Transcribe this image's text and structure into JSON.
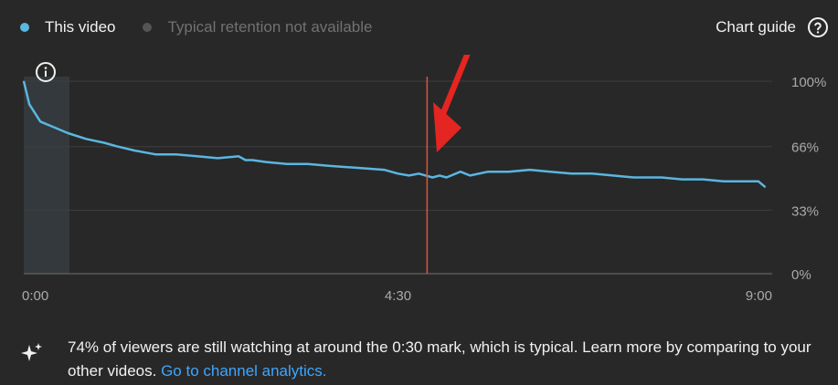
{
  "legend": {
    "this_video": "This video",
    "typical": "Typical retention not available"
  },
  "guide": {
    "label": "Chart guide"
  },
  "colors": {
    "series": "#5bb6e0",
    "typical_dot": "#555555",
    "marker": "#e0533e",
    "arrow": "#e52521",
    "link": "#3ea6ff"
  },
  "chart_data": {
    "type": "line",
    "xlabel": "",
    "ylabel": "",
    "x_ticks": [
      "0:00",
      "4:30",
      "9:00"
    ],
    "y_ticks": [
      "100%",
      "66%",
      "33%",
      "0%"
    ],
    "y_tick_values": [
      100,
      66,
      33,
      0
    ],
    "xlim_seconds": [
      0,
      540
    ],
    "ylim": [
      0,
      100
    ],
    "grid": true,
    "highlight_range_seconds": [
      0,
      33
    ],
    "marker_seconds": [
      291
    ],
    "series": [
      {
        "x_seconds": [
          0,
          4,
          12,
          22,
          32,
          45,
          58,
          68,
          80,
          95,
          110,
          125,
          140,
          155,
          160,
          165,
          175,
          190,
          205,
          220,
          240,
          260,
          270,
          278,
          285,
          290,
          295,
          300,
          305,
          315,
          322,
          335,
          350,
          365,
          380,
          395,
          410,
          425,
          440,
          450,
          460,
          475,
          490,
          505,
          515,
          530,
          535
        ],
        "values": [
          100,
          88,
          79,
          76,
          73,
          70,
          68,
          66,
          64,
          62,
          62,
          61,
          60,
          61,
          59,
          59,
          58,
          57,
          57,
          56,
          55,
          54,
          52,
          51,
          52,
          51,
          50,
          51,
          50,
          53,
          51,
          53,
          53,
          54,
          53,
          52,
          52,
          51,
          50,
          50,
          50,
          49,
          49,
          48,
          48,
          48,
          45
        ]
      }
    ]
  },
  "info": {
    "text": "74% of viewers are still watching at around the 0:30 mark, which is typical. Learn more by comparing to your other videos.",
    "link": "Go to channel analytics."
  }
}
